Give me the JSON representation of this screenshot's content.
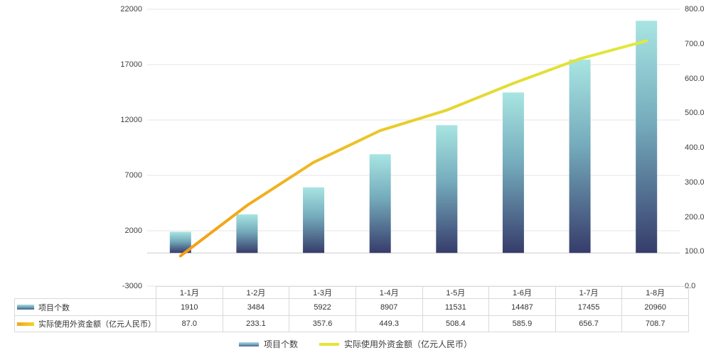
{
  "chart_data": {
    "type": "combo",
    "title": "",
    "categories": [
      "1-1月",
      "1-2月",
      "1-3月",
      "1-4月",
      "1-5月",
      "1-6月",
      "1-7月",
      "1-8月"
    ],
    "series": [
      {
        "name": "项目个数",
        "type": "bar",
        "axis": "left",
        "decimals": 0,
        "values": [
          1910,
          3484,
          5922,
          8907,
          11531,
          14487,
          17455,
          20960
        ]
      },
      {
        "name": "实际使用外资金额（亿元人民币）",
        "type": "line",
        "axis": "right",
        "decimals": 1,
        "values": [
          87.0,
          233.1,
          357.6,
          449.3,
          508.4,
          585.9,
          656.7,
          708.7
        ]
      }
    ],
    "left_axis": {
      "min": -3000,
      "max": 22000,
      "ticks": [
        22000,
        17000,
        12000,
        7000,
        2000,
        -3000
      ],
      "decimals": 0
    },
    "right_axis": {
      "min": 0,
      "max": 800,
      "ticks": [
        800,
        700,
        600,
        500,
        400,
        300,
        200,
        100,
        0
      ],
      "decimals": 1
    },
    "grid": true,
    "legend_position": "bottom",
    "colors": {
      "bar_gradient": [
        {
          "offset": 0,
          "color": "#a8e5e2"
        },
        {
          "offset": 0.45,
          "color": "#74aabb"
        },
        {
          "offset": 1,
          "color": "#363c6b"
        }
      ],
      "line_gradient": [
        {
          "offset": 0,
          "color": "#f59d16"
        },
        {
          "offset": 0.55,
          "color": "#e7d42f"
        },
        {
          "offset": 1,
          "color": "#e0ea3c"
        }
      ],
      "gridline": "#e6e6e6",
      "zero_axis_line": "#cccccc",
      "table_border": "#d9d9d9",
      "text": "#3c3c3c"
    }
  },
  "legend": {
    "items": [
      {
        "label": "项目个数"
      },
      {
        "label": "实际使用外资金额（亿元人民币）"
      }
    ]
  }
}
